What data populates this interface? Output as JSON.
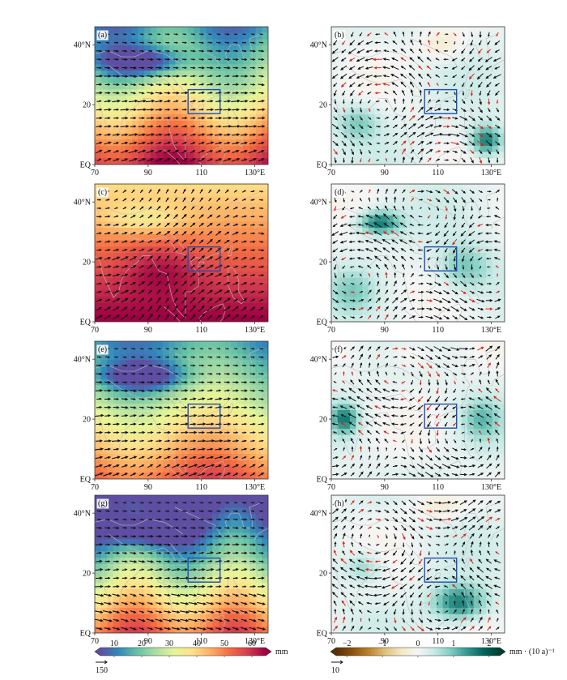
{
  "colors": {
    "box": "#1f4db5",
    "vector_black": "#111111",
    "vector_red": "#d6281e"
  },
  "chart_data": {
    "type": "heatmap",
    "layout": "4 rows x 2 columns of map panels",
    "x_ticks": [
      "70",
      "90",
      "110",
      "130°E"
    ],
    "y_ticks": [
      "40°N",
      "20",
      "EQ"
    ],
    "x_values": [
      70,
      90,
      110,
      130
    ],
    "y_values": [
      40,
      20,
      0
    ],
    "xlim": [
      70,
      135
    ],
    "ylim": [
      0,
      46
    ],
    "region_box": {
      "lon": [
        105,
        117
      ],
      "lat": [
        17,
        25
      ]
    },
    "panels": [
      {
        "label": "(a)",
        "field": "precipitation climatology",
        "vectors": "black"
      },
      {
        "label": "(b)",
        "field": "linear trend",
        "vectors": "black and red"
      },
      {
        "label": "(c)",
        "field": "precipitation climatology",
        "vectors": "black"
      },
      {
        "label": "(d)",
        "field": "linear trend",
        "vectors": "black and red"
      },
      {
        "label": "(e)",
        "field": "precipitation climatology",
        "vectors": "black"
      },
      {
        "label": "(f)",
        "field": "linear trend",
        "vectors": "black and red"
      },
      {
        "label": "(g)",
        "field": "precipitation climatology",
        "vectors": "black"
      },
      {
        "label": "(h)",
        "field": "linear trend",
        "vectors": "black and red"
      }
    ],
    "colorbars": [
      {
        "ticks": [
          "10",
          "20",
          "30",
          "40",
          "50",
          "60"
        ],
        "tick_values": [
          10,
          20,
          30,
          40,
          50,
          60
        ],
        "range": [
          5,
          65
        ],
        "unit": "mm",
        "reference_vector": "150",
        "colors": [
          "#5e4fa2",
          "#3288bd",
          "#66c2a5",
          "#abdda4",
          "#e6f598",
          "#fee08b",
          "#fdae61",
          "#f46d43",
          "#d53e4f",
          "#9e0142"
        ]
      },
      {
        "ticks": [
          "−2",
          "−1",
          "0",
          "1",
          "2"
        ],
        "tick_values": [
          -2,
          -1,
          0,
          1,
          2
        ],
        "range": [
          -2.3,
          2.3
        ],
        "unit": "mm · (10 a)⁻¹",
        "reference_vector": "10",
        "colors": [
          "#543005",
          "#8c510a",
          "#bf812d",
          "#dfc27d",
          "#f6e8c3",
          "#f5f5f5",
          "#c7eae5",
          "#80cdc1",
          "#35978f",
          "#01665e",
          "#003c30"
        ]
      }
    ]
  }
}
